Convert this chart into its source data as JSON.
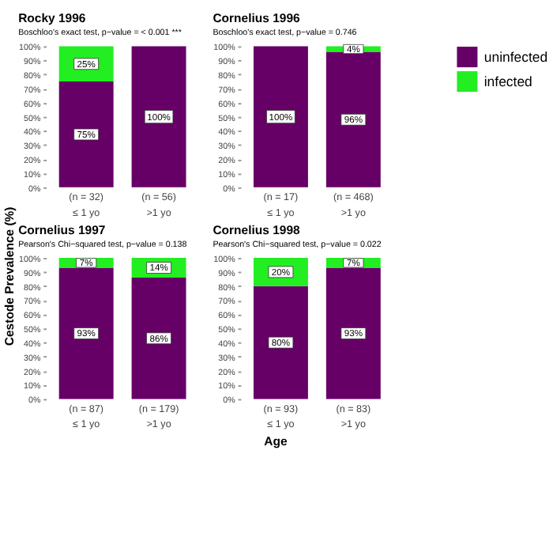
{
  "chart_data": [
    {
      "type": "bar",
      "title": "Rocky 1996",
      "subtitle": "Boschloo's exact test, p−value = < 0.001 ***",
      "ylabel": "Cestode Prevalence (%)",
      "categories": [
        "(n = 32)\n≤ 1 yo",
        "(n = 56)\n>1 yo"
      ],
      "stacked": true,
      "legend": "right",
      "ylim": [
        0,
        100
      ],
      "yticks": [
        {
          "value": 0,
          "label": "0%"
        },
        {
          "value": 10,
          "label": "10%"
        },
        {
          "value": 20,
          "label": "20%"
        },
        {
          "value": 30,
          "label": "30%"
        },
        {
          "value": 40,
          "label": "40%"
        },
        {
          "value": 50,
          "label": "50%"
        },
        {
          "value": 60,
          "label": "60%"
        },
        {
          "value": 70,
          "label": "70%"
        },
        {
          "value": 80,
          "label": "80%"
        },
        {
          "value": 90,
          "label": "90%"
        },
        {
          "value": 100,
          "label": "100%"
        }
      ],
      "series": [
        {
          "name": "uninfected",
          "color": "#660066",
          "values": [
            75,
            100
          ],
          "value_labels": [
            "75%",
            "100%"
          ]
        },
        {
          "name": "infected",
          "color": "#22ee22",
          "values": [
            25,
            0
          ],
          "value_labels": [
            "25%",
            null
          ]
        }
      ]
    },
    {
      "type": "bar",
      "title": "Cornelius 1996",
      "subtitle": "Boschloo's exact test, p−value = 0.746",
      "categories": [
        "(n = 17)\n≤ 1 yo",
        "(n = 468)\n>1 yo"
      ],
      "stacked": true,
      "ylim": [
        0,
        100
      ],
      "yticks": [
        {
          "value": 0,
          "label": "0%"
        },
        {
          "value": 10,
          "label": "10%"
        },
        {
          "value": 20,
          "label": "20%"
        },
        {
          "value": 30,
          "label": "30%"
        },
        {
          "value": 40,
          "label": "40%"
        },
        {
          "value": 50,
          "label": "50%"
        },
        {
          "value": 60,
          "label": "60%"
        },
        {
          "value": 70,
          "label": "70%"
        },
        {
          "value": 80,
          "label": "80%"
        },
        {
          "value": 90,
          "label": "90%"
        },
        {
          "value": 100,
          "label": "100%"
        }
      ],
      "series": [
        {
          "name": "uninfected",
          "color": "#660066",
          "values": [
            100,
            96
          ],
          "value_labels": [
            "100%",
            "96%"
          ]
        },
        {
          "name": "infected",
          "color": "#22ee22",
          "values": [
            0,
            4
          ],
          "value_labels": [
            null,
            "4%"
          ]
        }
      ]
    },
    {
      "type": "bar",
      "title": "Cornelius 1997",
      "subtitle": "Pearson's Chi−squared test, p−value = 0.138",
      "categories": [
        "(n = 87)\n≤ 1 yo",
        "(n = 179)\n>1 yo"
      ],
      "stacked": true,
      "ylim": [
        0,
        100
      ],
      "yticks": [
        {
          "value": 0,
          "label": "0%"
        },
        {
          "value": 10,
          "label": "10%"
        },
        {
          "value": 20,
          "label": "20%"
        },
        {
          "value": 30,
          "label": "30%"
        },
        {
          "value": 40,
          "label": "40%"
        },
        {
          "value": 50,
          "label": "50%"
        },
        {
          "value": 60,
          "label": "60%"
        },
        {
          "value": 70,
          "label": "70%"
        },
        {
          "value": 80,
          "label": "80%"
        },
        {
          "value": 90,
          "label": "90%"
        },
        {
          "value": 100,
          "label": "100%"
        }
      ],
      "series": [
        {
          "name": "uninfected",
          "color": "#660066",
          "values": [
            93,
            86
          ],
          "value_labels": [
            "93%",
            "86%"
          ]
        },
        {
          "name": "infected",
          "color": "#22ee22",
          "values": [
            7,
            14
          ],
          "value_labels": [
            "7%",
            "14%"
          ]
        }
      ]
    },
    {
      "type": "bar",
      "title": "Cornelius 1998",
      "subtitle": "Pearson's Chi−squared test, p−value = 0.022",
      "xlabel": "Age",
      "categories": [
        "(n = 93)\n≤ 1 yo",
        "(n = 83)\n>1 yo"
      ],
      "stacked": true,
      "ylim": [
        0,
        100
      ],
      "yticks": [
        {
          "value": 0,
          "label": "0%"
        },
        {
          "value": 10,
          "label": "10%"
        },
        {
          "value": 20,
          "label": "20%"
        },
        {
          "value": 30,
          "label": "30%"
        },
        {
          "value": 40,
          "label": "40%"
        },
        {
          "value": 50,
          "label": "50%"
        },
        {
          "value": 60,
          "label": "60%"
        },
        {
          "value": 70,
          "label": "70%"
        },
        {
          "value": 80,
          "label": "80%"
        },
        {
          "value": 90,
          "label": "90%"
        },
        {
          "value": 100,
          "label": "100%"
        }
      ],
      "series": [
        {
          "name": "uninfected",
          "color": "#660066",
          "values": [
            80,
            93
          ],
          "value_labels": [
            "80%",
            "93%"
          ]
        },
        {
          "name": "infected",
          "color": "#22ee22",
          "values": [
            20,
            7
          ],
          "value_labels": [
            "20%",
            "7%"
          ]
        }
      ]
    }
  ]
}
